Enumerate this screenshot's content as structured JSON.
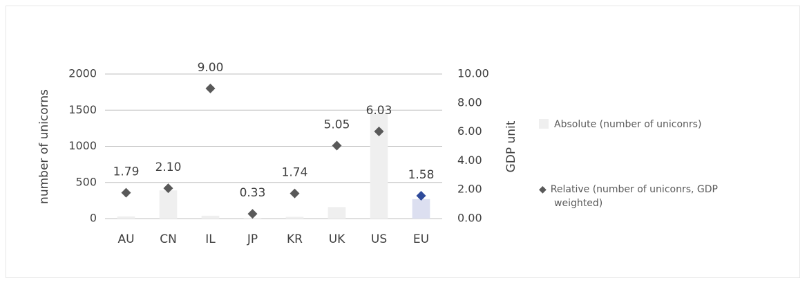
{
  "chart_data": {
    "type": "bar_scatter",
    "categories": [
      "AU",
      "CN",
      "IL",
      "JP",
      "KR",
      "UK",
      "US",
      "EU"
    ],
    "series": [
      {
        "name": "Absolute (number of uniconrs)",
        "type": "bar",
        "color": "#efefef",
        "colors": [
          "#efefef",
          "#efefef",
          "#efefef",
          "#efefef",
          "#efefef",
          "#efefef",
          "#efefef",
          "#dcdff0"
        ],
        "values": [
          30,
          390,
          40,
          10,
          25,
          160,
          1450,
          270
        ]
      },
      {
        "name": "Relative (number of uniconrs, GDP weighted)",
        "type": "scatter",
        "axis": "y2",
        "color": "#595959",
        "colors": [
          "#595959",
          "#595959",
          "#595959",
          "#595959",
          "#595959",
          "#595959",
          "#595959",
          "#2e4a9a"
        ],
        "values": [
          1.79,
          2.1,
          9.0,
          0.33,
          1.74,
          5.05,
          6.03,
          1.58
        ],
        "value_labels": [
          "1.79",
          "2.10",
          "9.00",
          "0.33",
          "1.74",
          "5.05",
          "6.03",
          "1.58"
        ]
      }
    ],
    "ylabel": "number of unicorns",
    "y2label": "GDP unit",
    "ylim": [
      0,
      2000
    ],
    "yticks": [
      0,
      500,
      1000,
      1500,
      2000
    ],
    "y2lim": [
      0,
      10
    ],
    "y2ticks": [
      {
        "value": 0,
        "label": "0.00"
      },
      {
        "value": 2,
        "label": "2.00"
      },
      {
        "value": 4,
        "label": "4.00"
      },
      {
        "value": 6,
        "label": "6.00"
      },
      {
        "value": 8,
        "label": "8.00"
      },
      {
        "value": 10,
        "label": "10.00"
      }
    ],
    "grid": true
  }
}
